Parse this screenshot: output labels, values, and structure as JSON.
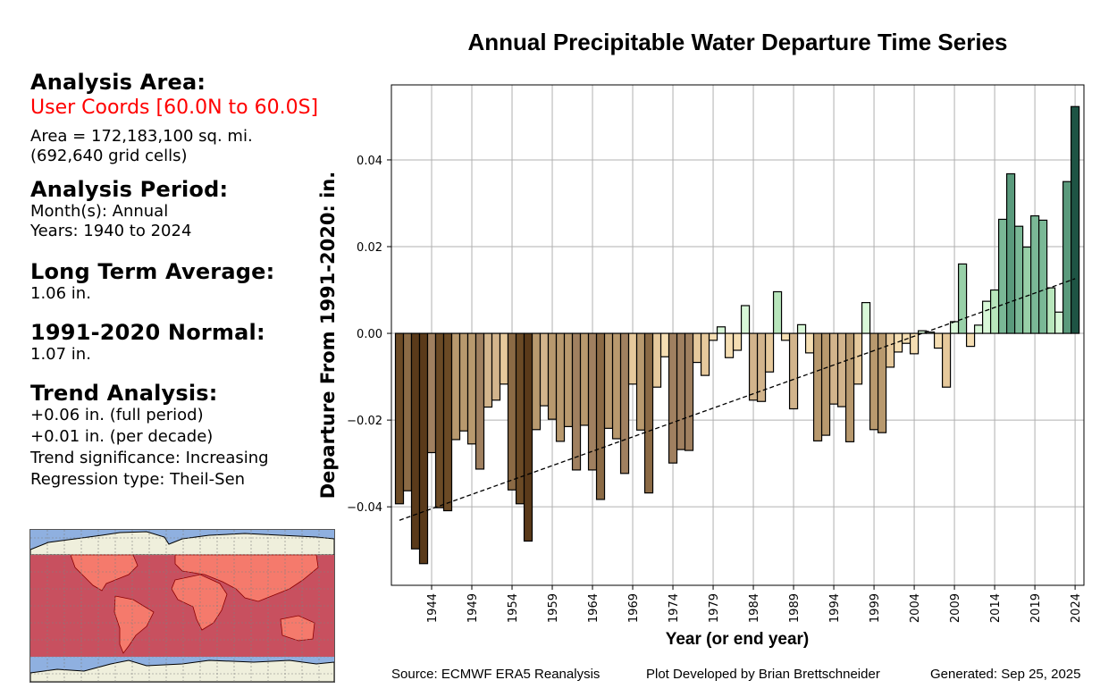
{
  "left_panel": {
    "area_heading": "Analysis Area:",
    "area_name": "User Coords [60.0N to 60.0S]",
    "area_size": "Area = 172,183,100 sq. mi.",
    "grid_cells": "(692,640 grid cells)",
    "period_heading": "Analysis Period:",
    "months": "Month(s): Annual",
    "years": "Years: 1940 to 2024",
    "lta_heading": "Long Term Average:",
    "lta_value": "1.06 in.",
    "normal_heading": "1991-2020 Normal:",
    "normal_value": "1.07 in.",
    "trend_heading": "Trend Analysis:",
    "trend_full": "+0.06 in. (full period)",
    "trend_decade": "+0.01 in. (per decade)",
    "trend_significance": "Trend significance: Increasing",
    "regression_type": "Regression type: Theil-Sen"
  },
  "map": {
    "description": "World map with analysis band 60N to 60S highlighted",
    "colors": {
      "ocean": "#8fb0e0",
      "land": "#efefdc",
      "highlight": "#c8505f",
      "highlight_land": "#f57a6c",
      "border": "#8b0000"
    }
  },
  "footer": {
    "source": "Source: ECMWF ERA5 Reanalysis",
    "developer": "Plot Developed by Brian Brettschneider",
    "generated": "Generated: Sep 25, 2025"
  },
  "chart_data": {
    "type": "bar",
    "title": "Annual Precipitable Water Departure Time Series",
    "xlabel": "Year (or end year)",
    "ylabel": "Departure From 1991-2020:  in.",
    "xlim": [
      1939.0,
      2025.1
    ],
    "ylim": [
      -0.0581,
      0.0573
    ],
    "grid": true,
    "x_ticks": [
      1944,
      1949,
      1954,
      1959,
      1964,
      1969,
      1974,
      1979,
      1984,
      1989,
      1994,
      1999,
      2004,
      2009,
      2014,
      2019,
      2024
    ],
    "y_ticks": [
      -0.04,
      -0.02,
      0.0,
      0.02,
      0.04
    ],
    "y_tick_labels": [
      "−0.04",
      "−0.02",
      "0.00",
      "0.02",
      "0.04"
    ],
    "x": [
      1940,
      1941,
      1942,
      1943,
      1944,
      1945,
      1946,
      1947,
      1948,
      1949,
      1950,
      1951,
      1952,
      1953,
      1954,
      1955,
      1956,
      1957,
      1958,
      1959,
      1960,
      1961,
      1962,
      1963,
      1964,
      1965,
      1966,
      1967,
      1968,
      1969,
      1970,
      1971,
      1972,
      1973,
      1974,
      1975,
      1976,
      1977,
      1978,
      1979,
      1980,
      1981,
      1982,
      1983,
      1984,
      1985,
      1986,
      1987,
      1988,
      1989,
      1990,
      1991,
      1992,
      1993,
      1994,
      1995,
      1996,
      1997,
      1998,
      1999,
      2000,
      2001,
      2002,
      2003,
      2004,
      2005,
      2006,
      2007,
      2008,
      2009,
      2010,
      2011,
      2012,
      2013,
      2014,
      2015,
      2016,
      2017,
      2018,
      2019,
      2020,
      2021,
      2022,
      2023,
      2024
    ],
    "values": [
      -0.0393,
      -0.0363,
      -0.0497,
      -0.0531,
      -0.0275,
      -0.0402,
      -0.0409,
      -0.0245,
      -0.0225,
      -0.0255,
      -0.0313,
      -0.017,
      -0.0154,
      -0.0117,
      -0.0361,
      -0.0393,
      -0.0479,
      -0.0222,
      -0.0167,
      -0.0198,
      -0.0249,
      -0.0215,
      -0.0315,
      -0.0212,
      -0.0315,
      -0.0383,
      -0.0219,
      -0.0243,
      -0.0323,
      -0.0117,
      -0.0223,
      -0.0368,
      -0.0124,
      -0.0054,
      -0.0299,
      -0.0268,
      -0.027,
      -0.0067,
      -0.0097,
      -0.0016,
      0.0015,
      -0.0056,
      -0.0039,
      0.0064,
      -0.0154,
      -0.0157,
      -0.0089,
      0.0096,
      -0.0016,
      -0.0174,
      0.002,
      -0.0045,
      -0.0248,
      -0.0235,
      -0.0163,
      -0.0169,
      -0.025,
      -0.0117,
      0.0071,
      -0.0222,
      -0.0229,
      -0.0078,
      -0.0043,
      -0.0023,
      -0.0047,
      0.0006,
      0.0003,
      -0.0034,
      -0.0124,
      0.0027,
      0.016,
      -0.003,
      0.0019,
      0.0074,
      0.01,
      0.0263,
      0.0368,
      0.0247,
      0.0199,
      0.0271,
      0.0261,
      0.0105,
      0.0049,
      0.035,
      0.0523
    ],
    "trend_line": {
      "type": "Theil-Sen",
      "start": [
        1940,
        -0.0431
      ],
      "end": [
        2024,
        0.0126
      ],
      "style": "dashed"
    },
    "color_scale": {
      "negative": [
        "#f5deb3",
        "#e6c99c",
        "#d2b48c",
        "#b8996e",
        "#a08060",
        "#8b6a45",
        "#6b4a25",
        "#5a3a1a"
      ],
      "positive": [
        "#d8f8d8",
        "#b8e6bc",
        "#98d0a8",
        "#7ab896",
        "#5a9a7c",
        "#3d7a62",
        "#1e5444"
      ]
    }
  }
}
